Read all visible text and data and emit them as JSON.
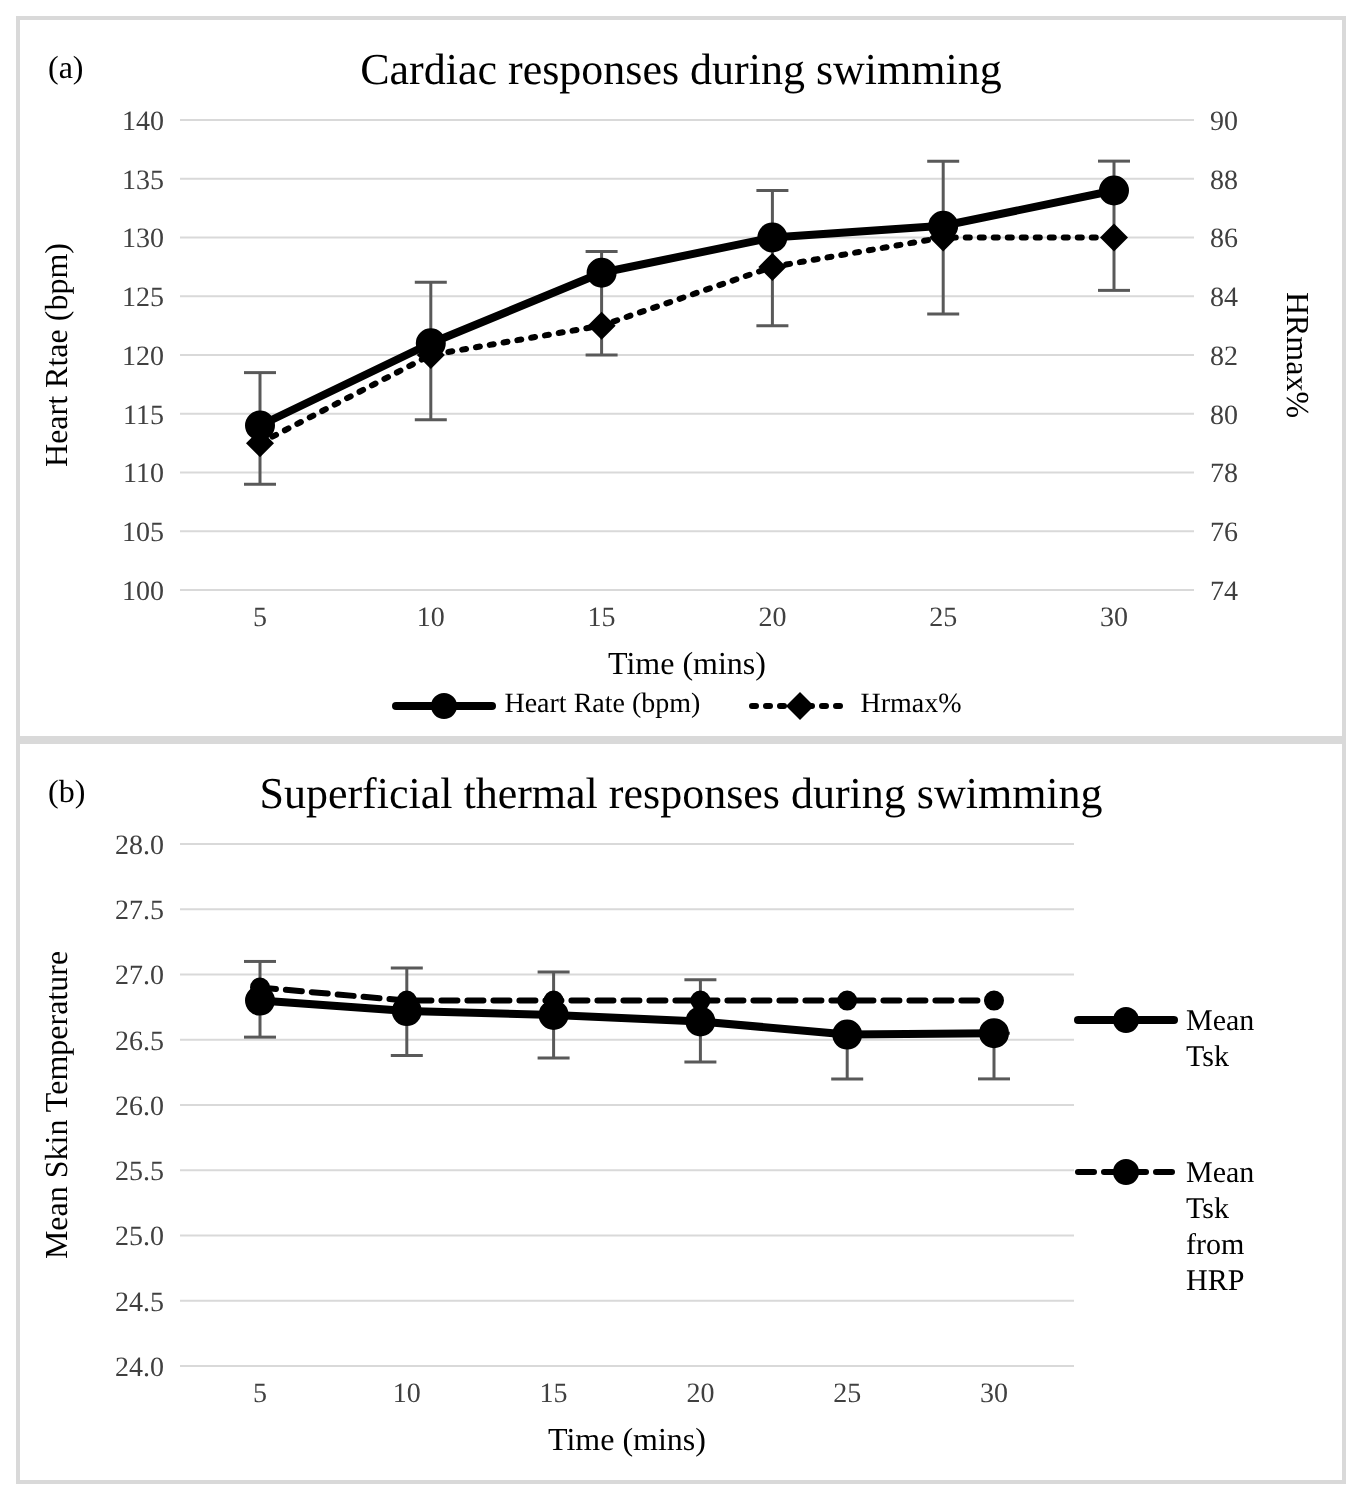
{
  "chart_data": [
    {
      "type": "line",
      "title": "Cardiac responses during swimming",
      "xlabel": "Time (mins)",
      "ylabel": "Heart Rtae (bpm)",
      "y2label": "HRmax%",
      "annotations": [
        "(a)"
      ],
      "categories": [
        "5",
        "10",
        "15",
        "20",
        "25",
        "30"
      ],
      "series": [
        {
          "name": "Heart Rate (bpm)",
          "color": "#000000",
          "values": [
            114,
            121,
            127,
            130,
            131,
            134
          ],
          "errors": [
            [
              109,
              118.5
            ],
            [
              114.5,
              126.2
            ],
            [
              120,
              128.8
            ],
            [
              122.5,
              134
            ],
            [
              123.5,
              136.5
            ],
            [
              125.5,
              136.5
            ]
          ],
          "marker": "circle",
          "line_style": "solid"
        },
        {
          "name": "Hrmax%",
          "color": "#000000",
          "values": [
            79,
            82,
            83,
            85,
            86,
            86
          ],
          "axis": "y2",
          "marker": "diamond",
          "line_style": "dotted"
        }
      ],
      "ylim": [
        100,
        140
      ],
      "yticks": [
        100,
        105,
        110,
        115,
        120,
        125,
        130,
        135,
        140
      ],
      "y2lim": [
        74,
        90
      ],
      "y2ticks": [
        74,
        76,
        78,
        80,
        82,
        84,
        86,
        88,
        90
      ],
      "grid": "y",
      "legend": "bottom"
    },
    {
      "type": "line",
      "title": "Superficial thermal responses during swimming",
      "xlabel": "Time (mins)",
      "ylabel": "Mean Skin Temperature",
      "annotations": [
        "(b)"
      ],
      "categories": [
        "5",
        "10",
        "15",
        "20",
        "25",
        "30"
      ],
      "series": [
        {
          "name": "Mean Tsk",
          "color": "#000000",
          "values": [
            26.8,
            26.72,
            26.69,
            26.64,
            26.54,
            26.55
          ],
          "errors": [
            [
              26.52,
              27.1
            ],
            [
              26.38,
              27.05
            ],
            [
              26.36,
              27.02
            ],
            [
              26.33,
              26.96
            ],
            [
              26.2,
              26.54
            ],
            [
              26.2,
              26.55
            ]
          ],
          "marker": "circle",
          "line_style": "solid"
        },
        {
          "name": "Mean Tsk from HRP",
          "color": "#000000",
          "values": [
            26.9,
            26.8,
            26.8,
            26.8,
            26.8,
            26.8
          ],
          "marker": "circle",
          "line_style": "dashed"
        }
      ],
      "ylim": [
        24,
        28
      ],
      "yticks": [
        {
          "value": 24,
          "label": "24.0"
        },
        {
          "value": 24.5,
          "label": "24.5"
        },
        {
          "value": 25,
          "label": "25.0"
        },
        {
          "value": 25.5,
          "label": "25.5"
        },
        {
          "value": 26,
          "label": "26.0"
        },
        {
          "value": 26.5,
          "label": "26.5"
        },
        {
          "value": 27,
          "label": "27.0"
        },
        {
          "value": 27.5,
          "label": "27.5"
        },
        {
          "value": 28,
          "label": "28.0"
        }
      ],
      "grid": "y",
      "legend": "right"
    }
  ]
}
